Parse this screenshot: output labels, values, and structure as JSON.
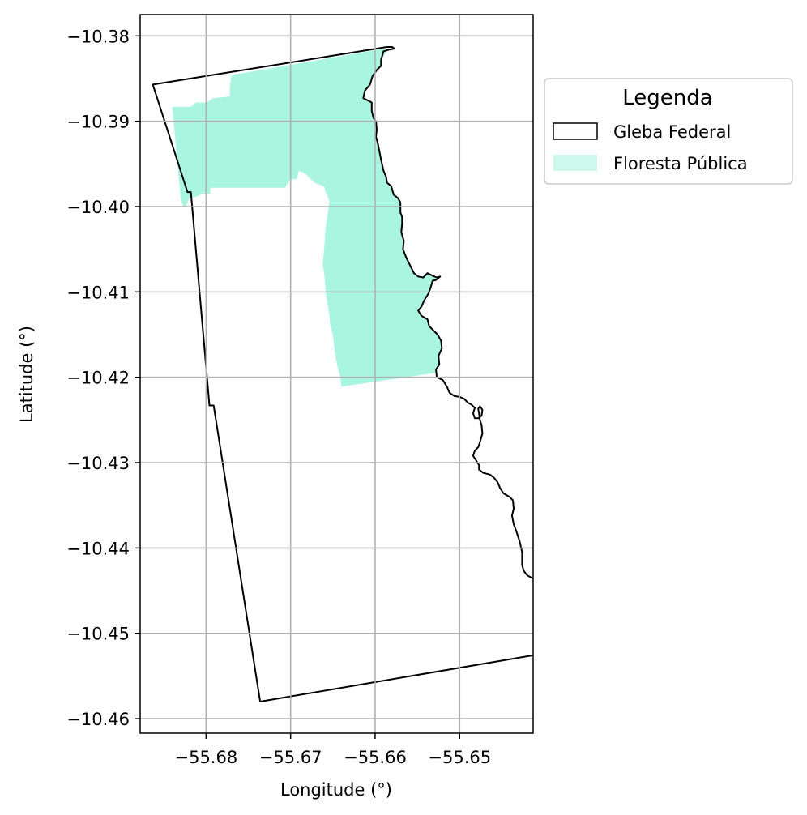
{
  "chart_data": {
    "type": "map",
    "xlabel": "Longitude (°)",
    "ylabel": "Latitude (°)",
    "xlim": [
      -55.6878,
      -55.6413
    ],
    "ylim": [
      -10.4617,
      -10.3775
    ],
    "xticks": [
      -55.68,
      -55.67,
      -55.66,
      -55.65
    ],
    "xtick_labels": [
      "−55.68",
      "−55.67",
      "−55.66",
      "−55.65"
    ],
    "yticks": [
      -10.38,
      -10.39,
      -10.4,
      -10.41,
      -10.42,
      -10.43,
      -10.44,
      -10.45,
      -10.46
    ],
    "ytick_labels": [
      "−10.38",
      "−10.39",
      "−10.40",
      "−10.41",
      "−10.42",
      "−10.43",
      "−10.44",
      "−10.45",
      "−10.46"
    ],
    "grid": true,
    "legend": {
      "title": "Legenda",
      "placement": "outside-upper-right",
      "entries": [
        {
          "label": "Gleba Federal",
          "kind": "outline",
          "edge_color": "#000000",
          "face_color": "#ffffff"
        },
        {
          "label": "Floresta Pública",
          "kind": "fill",
          "face_color": "#aaf5e0"
        }
      ]
    },
    "layers": [
      {
        "name": "Gleba Federal",
        "kind": "outline",
        "stroke": "#000000",
        "coordinates": [
          [
            -55.6863,
            -10.3857
          ],
          [
            -55.6586,
            -10.3813
          ],
          [
            -55.658,
            -10.3813
          ],
          [
            -55.6577,
            -10.3815
          ],
          [
            -55.6583,
            -10.3816
          ],
          [
            -55.659,
            -10.3818
          ],
          [
            -55.6593,
            -10.3828
          ],
          [
            -55.6593,
            -10.3835
          ],
          [
            -55.6598,
            -10.384
          ],
          [
            -55.6603,
            -10.3847
          ],
          [
            -55.6606,
            -10.3857
          ],
          [
            -55.6612,
            -10.3864
          ],
          [
            -55.6614,
            -10.3873
          ],
          [
            -55.6604,
            -10.3878
          ],
          [
            -55.6604,
            -10.3888
          ],
          [
            -55.6602,
            -10.3896
          ],
          [
            -55.6599,
            -10.39
          ],
          [
            -55.6598,
            -10.391
          ],
          [
            -55.6599,
            -10.3918
          ],
          [
            -55.6597,
            -10.3925
          ],
          [
            -55.6595,
            -10.3935
          ],
          [
            -55.6593,
            -10.3945
          ],
          [
            -55.659,
            -10.3958
          ],
          [
            -55.6587,
            -10.3965
          ],
          [
            -55.6586,
            -10.3972
          ],
          [
            -55.6581,
            -10.3976
          ],
          [
            -55.6578,
            -10.3986
          ],
          [
            -55.6573,
            -10.399
          ],
          [
            -55.657,
            -10.3995
          ],
          [
            -55.657,
            -10.4007
          ],
          [
            -55.6568,
            -10.4012
          ],
          [
            -55.6568,
            -10.402
          ],
          [
            -55.6569,
            -10.403
          ],
          [
            -55.6566,
            -10.404
          ],
          [
            -55.6567,
            -10.405
          ],
          [
            -55.6563,
            -10.406
          ],
          [
            -55.6558,
            -10.407
          ],
          [
            -55.6554,
            -10.4078
          ],
          [
            -55.6549,
            -10.4082
          ],
          [
            -55.6543,
            -10.4083
          ],
          [
            -55.6538,
            -10.4078
          ],
          [
            -55.6532,
            -10.4081
          ],
          [
            -55.6527,
            -10.4083
          ],
          [
            -55.6523,
            -10.4082
          ],
          [
            -55.6528,
            -10.4086
          ],
          [
            -55.6532,
            -10.4087
          ],
          [
            -55.6534,
            -10.4094
          ],
          [
            -55.6537,
            -10.4102
          ],
          [
            -55.6542,
            -10.411
          ],
          [
            -55.6545,
            -10.4117
          ],
          [
            -55.6549,
            -10.4122
          ],
          [
            -55.6545,
            -10.4128
          ],
          [
            -55.6538,
            -10.4132
          ],
          [
            -55.6536,
            -10.414
          ],
          [
            -55.6531,
            -10.4145
          ],
          [
            -55.6526,
            -10.415
          ],
          [
            -55.6522,
            -10.4157
          ],
          [
            -55.6521,
            -10.4166
          ],
          [
            -55.6525,
            -10.4175
          ],
          [
            -55.6524,
            -10.4185
          ],
          [
            -55.6528,
            -10.4191
          ],
          [
            -55.6527,
            -10.42
          ],
          [
            -55.652,
            -10.4203
          ],
          [
            -55.6515,
            -10.4211
          ],
          [
            -55.6512,
            -10.4218
          ],
          [
            -55.6506,
            -10.4222
          ],
          [
            -55.65,
            -10.4223
          ],
          [
            -55.6495,
            -10.4225
          ],
          [
            -55.649,
            -10.423
          ],
          [
            -55.6486,
            -10.4232
          ],
          [
            -55.6482,
            -10.4236
          ],
          [
            -55.6484,
            -10.4242
          ],
          [
            -55.6482,
            -10.4248
          ],
          [
            -55.6478,
            -10.4248
          ],
          [
            -55.6474,
            -10.4245
          ],
          [
            -55.6473,
            -10.4238
          ],
          [
            -55.6476,
            -10.4234
          ],
          [
            -55.6478,
            -10.4237
          ],
          [
            -55.6477,
            -10.4242
          ],
          [
            -55.6476,
            -10.425
          ],
          [
            -55.6474,
            -10.4256
          ],
          [
            -55.6473,
            -10.4266
          ],
          [
            -55.6476,
            -10.4276
          ],
          [
            -55.6478,
            -10.4282
          ],
          [
            -55.6482,
            -10.4286
          ],
          [
            -55.6484,
            -10.4292
          ],
          [
            -55.648,
            -10.4298
          ],
          [
            -55.6477,
            -10.4303
          ],
          [
            -55.6477,
            -10.4308
          ],
          [
            -55.6472,
            -10.4312
          ],
          [
            -55.6464,
            -10.4314
          ],
          [
            -55.6459,
            -10.4318
          ],
          [
            -55.6455,
            -10.4323
          ],
          [
            -55.6452,
            -10.433
          ],
          [
            -55.6448,
            -10.4336
          ],
          [
            -55.6441,
            -10.434
          ],
          [
            -55.6437,
            -10.4344
          ],
          [
            -55.6436,
            -10.4354
          ],
          [
            -55.6438,
            -10.4362
          ],
          [
            -55.6436,
            -10.4372
          ],
          [
            -55.6433,
            -10.438
          ],
          [
            -55.6429,
            -10.4392
          ],
          [
            -55.6426,
            -10.4405
          ],
          [
            -55.6426,
            -10.442
          ],
          [
            -55.6424,
            -10.4427
          ],
          [
            -55.642,
            -10.4432
          ],
          [
            -55.6413,
            -10.4436
          ],
          [
            -55.641,
            -10.4433
          ],
          [
            -55.6404,
            -10.4438
          ],
          [
            -55.6399,
            -10.4438
          ],
          [
            -55.6395,
            -10.4443
          ],
          [
            -55.639,
            -10.4447
          ],
          [
            -55.6386,
            -10.4455
          ],
          [
            -55.638,
            -10.446
          ],
          [
            -55.6375,
            -10.4464
          ],
          [
            -55.6381,
            -10.4466
          ],
          [
            -55.6388,
            -10.4466
          ],
          [
            -55.6393,
            -10.4468
          ],
          [
            -55.6396,
            -10.448
          ],
          [
            -55.6396,
            -10.449
          ],
          [
            -55.6398,
            -10.45
          ],
          [
            -55.6399,
            -10.4505
          ],
          [
            -55.6396,
            -10.451
          ],
          [
            -55.6391,
            -10.4514
          ],
          [
            -55.638,
            -10.4517
          ],
          [
            -55.6373,
            -10.4519
          ],
          [
            -55.6736,
            -10.458
          ],
          [
            -55.6791,
            -10.4233
          ],
          [
            -55.6796,
            -10.4233
          ],
          [
            -55.6818,
            -10.3983
          ],
          [
            -55.6822,
            -10.3983
          ],
          [
            -55.6863,
            -10.3857
          ]
        ]
      },
      {
        "name": "Floresta Pública",
        "kind": "fill",
        "fill": "#aaf5e0",
        "coordinates": [
          [
            -55.684,
            -10.3883
          ],
          [
            -55.6818,
            -10.3883
          ],
          [
            -55.6812,
            -10.3878
          ],
          [
            -55.6806,
            -10.3878
          ],
          [
            -55.6799,
            -10.3878
          ],
          [
            -55.6792,
            -10.3873
          ],
          [
            -55.6782,
            -10.3872
          ],
          [
            -55.6772,
            -10.3871
          ],
          [
            -55.6772,
            -10.386
          ],
          [
            -55.677,
            -10.3846
          ],
          [
            -55.659,
            -10.3815
          ],
          [
            -55.6586,
            -10.3818
          ],
          [
            -55.6593,
            -10.3828
          ],
          [
            -55.6593,
            -10.3835
          ],
          [
            -55.6598,
            -10.384
          ],
          [
            -55.6603,
            -10.3847
          ],
          [
            -55.6606,
            -10.3857
          ],
          [
            -55.6612,
            -10.3864
          ],
          [
            -55.6614,
            -10.3873
          ],
          [
            -55.6604,
            -10.3878
          ],
          [
            -55.6604,
            -10.3888
          ],
          [
            -55.6602,
            -10.3896
          ],
          [
            -55.6599,
            -10.39
          ],
          [
            -55.6598,
            -10.391
          ],
          [
            -55.6599,
            -10.3918
          ],
          [
            -55.6597,
            -10.3925
          ],
          [
            -55.6595,
            -10.3935
          ],
          [
            -55.6593,
            -10.3945
          ],
          [
            -55.659,
            -10.3958
          ],
          [
            -55.6587,
            -10.3965
          ],
          [
            -55.6586,
            -10.3972
          ],
          [
            -55.6581,
            -10.3976
          ],
          [
            -55.6578,
            -10.3986
          ],
          [
            -55.6573,
            -10.399
          ],
          [
            -55.657,
            -10.3995
          ],
          [
            -55.657,
            -10.4007
          ],
          [
            -55.6568,
            -10.4012
          ],
          [
            -55.6568,
            -10.402
          ],
          [
            -55.6569,
            -10.403
          ],
          [
            -55.6566,
            -10.404
          ],
          [
            -55.6567,
            -10.405
          ],
          [
            -55.6563,
            -10.406
          ],
          [
            -55.6558,
            -10.407
          ],
          [
            -55.6554,
            -10.4078
          ],
          [
            -55.6549,
            -10.4082
          ],
          [
            -55.6543,
            -10.4083
          ],
          [
            -55.6538,
            -10.4078
          ],
          [
            -55.6532,
            -10.4081
          ],
          [
            -55.6527,
            -10.4083
          ],
          [
            -55.6523,
            -10.4082
          ],
          [
            -55.6528,
            -10.4086
          ],
          [
            -55.6532,
            -10.4087
          ],
          [
            -55.6534,
            -10.4094
          ],
          [
            -55.6537,
            -10.4102
          ],
          [
            -55.6542,
            -10.411
          ],
          [
            -55.6545,
            -10.4117
          ],
          [
            -55.6549,
            -10.4122
          ],
          [
            -55.6545,
            -10.4128
          ],
          [
            -55.6538,
            -10.4132
          ],
          [
            -55.6536,
            -10.414
          ],
          [
            -55.6531,
            -10.4145
          ],
          [
            -55.6526,
            -10.415
          ],
          [
            -55.6522,
            -10.4157
          ],
          [
            -55.6521,
            -10.4166
          ],
          [
            -55.6525,
            -10.4175
          ],
          [
            -55.6524,
            -10.4185
          ],
          [
            -55.6528,
            -10.4191
          ],
          [
            -55.6529,
            -10.4195
          ],
          [
            -55.664,
            -10.4211
          ],
          [
            -55.6641,
            -10.42
          ],
          [
            -55.6644,
            -10.419
          ],
          [
            -55.6646,
            -10.418
          ],
          [
            -55.6648,
            -10.4168
          ],
          [
            -55.665,
            -10.415
          ],
          [
            -55.6653,
            -10.414
          ],
          [
            -55.6654,
            -10.4128
          ],
          [
            -55.6656,
            -10.4115
          ],
          [
            -55.6658,
            -10.4105
          ],
          [
            -55.6659,
            -10.4093
          ],
          [
            -55.666,
            -10.408
          ],
          [
            -55.6662,
            -10.4068
          ],
          [
            -55.6661,
            -10.4057
          ],
          [
            -55.666,
            -10.4045
          ],
          [
            -55.6659,
            -10.4032
          ],
          [
            -55.6658,
            -10.402
          ],
          [
            -55.6656,
            -10.4008
          ],
          [
            -55.6654,
            -10.3995
          ],
          [
            -55.6656,
            -10.3988
          ],
          [
            -55.6659,
            -10.3982
          ],
          [
            -55.666,
            -10.3977
          ],
          [
            -55.6664,
            -10.3975
          ],
          [
            -55.6672,
            -10.3972
          ],
          [
            -55.6682,
            -10.3962
          ],
          [
            -55.669,
            -10.3958
          ],
          [
            -55.6693,
            -10.3968
          ],
          [
            -55.67,
            -10.3968
          ],
          [
            -55.6707,
            -10.3978
          ],
          [
            -55.6712,
            -10.3978
          ],
          [
            -55.678,
            -10.3978
          ],
          [
            -55.6795,
            -10.3978
          ],
          [
            -55.6795,
            -10.3985
          ],
          [
            -55.6805,
            -10.3985
          ],
          [
            -55.681,
            -10.3988
          ],
          [
            -55.682,
            -10.399
          ],
          [
            -55.6824,
            -10.4
          ],
          [
            -55.6827,
            -10.4
          ],
          [
            -55.683,
            -10.399
          ],
          [
            -55.684,
            -10.3883
          ]
        ]
      }
    ]
  }
}
